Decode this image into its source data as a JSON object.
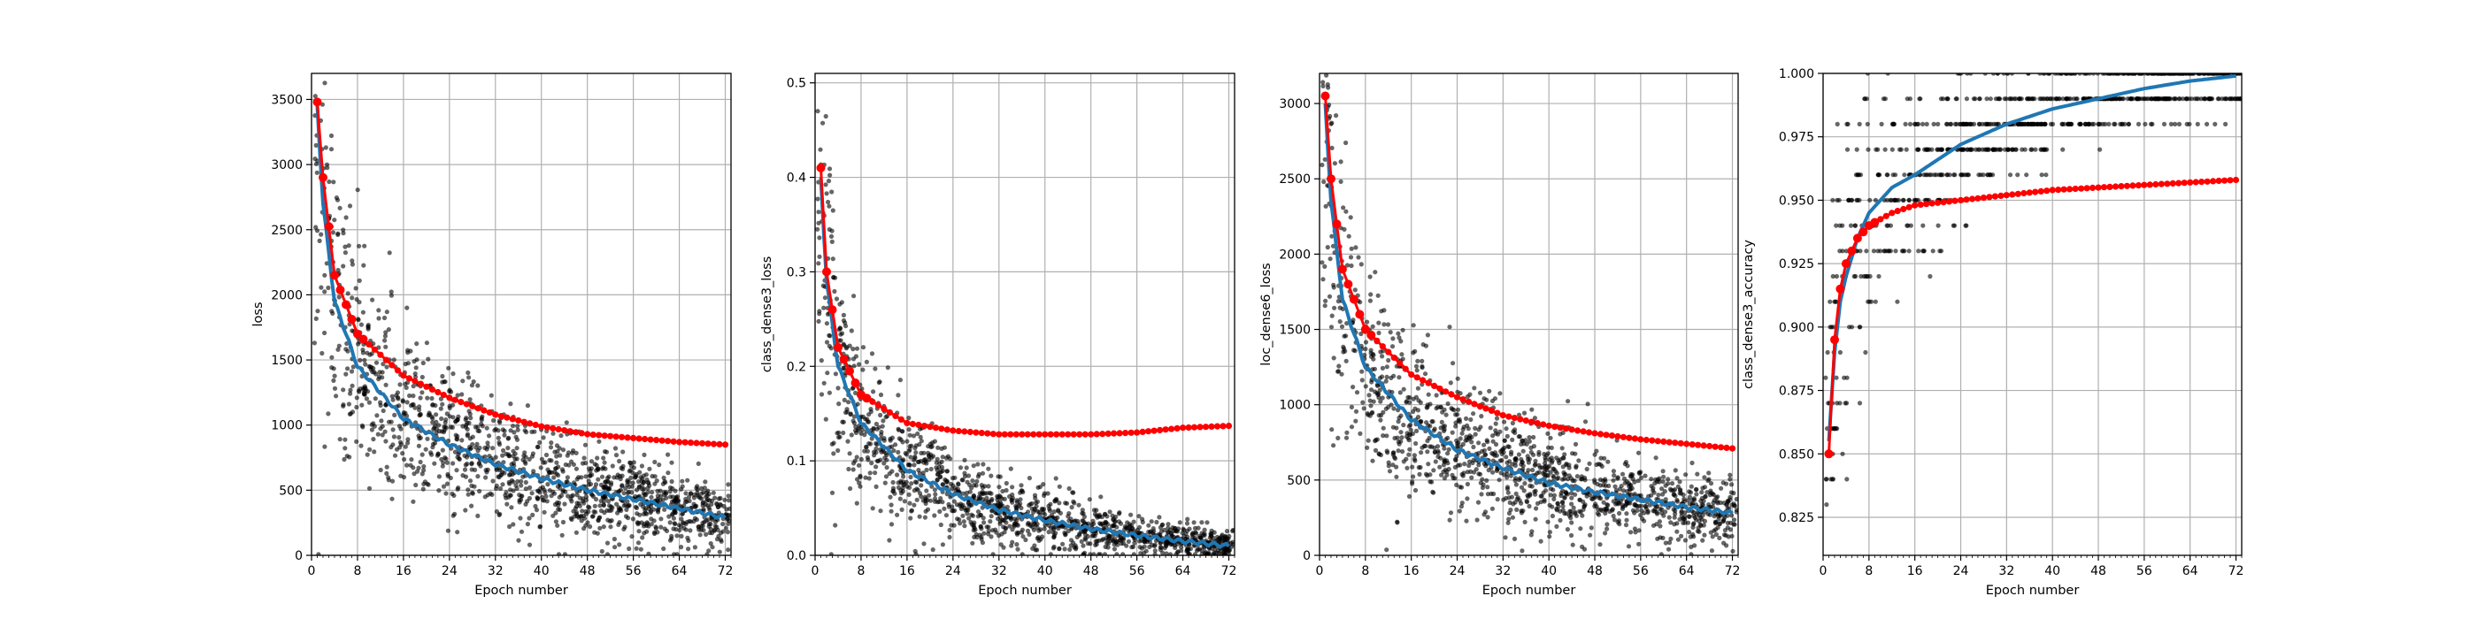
{
  "chart_data": [
    {
      "type": "scatter",
      "xlabel": "Epoch number",
      "ylabel": "loss",
      "xlim": [
        0,
        73
      ],
      "ylim": [
        0,
        3700
      ],
      "xticks": [
        0,
        8,
        16,
        24,
        32,
        40,
        48,
        56,
        64,
        72
      ],
      "yticks": [
        0,
        500,
        1000,
        1500,
        2000,
        2500,
        3000,
        3500
      ],
      "grid": true,
      "colors": {
        "points": "#000000",
        "train": "#1f77b4",
        "val": "#ff0000"
      },
      "series": [
        {
          "role": "val",
          "x": [
            1,
            2,
            4,
            8,
            16,
            24,
            32,
            40,
            48,
            56,
            64,
            72
          ],
          "values": [
            3480,
            2900,
            2150,
            1700,
            1380,
            1210,
            1080,
            990,
            930,
            900,
            870,
            850
          ]
        },
        {
          "role": "train",
          "x": [
            1,
            2,
            4,
            8,
            16,
            24,
            32,
            40,
            48,
            56,
            64,
            72
          ],
          "values": [
            3450,
            2700,
            1950,
            1450,
            1050,
            850,
            700,
            590,
            500,
            430,
            360,
            290
          ]
        }
      ]
    },
    {
      "type": "scatter",
      "xlabel": "Epoch number",
      "ylabel": "class_dense3_loss",
      "xlim": [
        0,
        73
      ],
      "ylim": [
        0,
        0.51
      ],
      "xticks": [
        0,
        8,
        16,
        24,
        32,
        40,
        48,
        56,
        64,
        72
      ],
      "yticks": [
        0.0,
        0.1,
        0.2,
        0.3,
        0.4,
        0.5
      ],
      "grid": true,
      "colors": {
        "points": "#000000",
        "train": "#1f77b4",
        "val": "#ff0000"
      },
      "series": [
        {
          "role": "val",
          "x": [
            1,
            2,
            4,
            8,
            16,
            24,
            32,
            40,
            48,
            56,
            64,
            72
          ],
          "values": [
            0.41,
            0.3,
            0.22,
            0.17,
            0.14,
            0.132,
            0.128,
            0.128,
            0.128,
            0.13,
            0.135,
            0.137
          ]
        },
        {
          "role": "train",
          "x": [
            1,
            2,
            4,
            8,
            16,
            24,
            32,
            40,
            48,
            56,
            64,
            72
          ],
          "values": [
            0.4,
            0.29,
            0.2,
            0.14,
            0.09,
            0.065,
            0.048,
            0.037,
            0.028,
            0.021,
            0.015,
            0.01
          ]
        }
      ]
    },
    {
      "type": "scatter",
      "xlabel": "Epoch number",
      "ylabel": "loc_dense6_loss",
      "xlim": [
        0,
        73
      ],
      "ylim": [
        0,
        3200
      ],
      "xticks": [
        0,
        8,
        16,
        24,
        32,
        40,
        48,
        56,
        64,
        72
      ],
      "yticks": [
        0,
        500,
        1000,
        1500,
        2000,
        2500,
        3000
      ],
      "grid": true,
      "colors": {
        "points": "#000000",
        "train": "#1f77b4",
        "val": "#ff0000"
      },
      "series": [
        {
          "role": "val",
          "x": [
            1,
            2,
            4,
            8,
            16,
            24,
            32,
            40,
            48,
            56,
            64,
            72
          ],
          "values": [
            3050,
            2500,
            1900,
            1500,
            1200,
            1050,
            930,
            860,
            810,
            770,
            740,
            710
          ]
        },
        {
          "role": "train",
          "x": [
            1,
            2,
            4,
            8,
            16,
            24,
            32,
            40,
            48,
            56,
            64,
            72
          ],
          "values": [
            3000,
            2350,
            1700,
            1250,
            900,
            700,
            580,
            480,
            420,
            370,
            320,
            280
          ]
        }
      ]
    },
    {
      "type": "scatter",
      "xlabel": "Epoch number",
      "ylabel": "class_dense3_accuracy",
      "xlim": [
        0,
        73
      ],
      "ylim": [
        0.81,
        1.0
      ],
      "xticks": [
        0,
        8,
        16,
        24,
        32,
        40,
        48,
        56,
        64,
        72
      ],
      "yticks": [
        0.825,
        0.85,
        0.875,
        0.9,
        0.925,
        0.95,
        0.975,
        1.0
      ],
      "ytick_labels": [
        "0.825",
        "0.850",
        "0.875",
        "0.900",
        "0.925",
        "0.950",
        "0.975",
        "1.000"
      ],
      "grid": true,
      "colors": {
        "points": "#000000",
        "train": "#1f77b4",
        "val": "#ff0000"
      },
      "series": [
        {
          "role": "val",
          "x": [
            1,
            2,
            3,
            4,
            6,
            8,
            12,
            16,
            24,
            32,
            40,
            48,
            56,
            64,
            72
          ],
          "values": [
            0.85,
            0.895,
            0.915,
            0.925,
            0.935,
            0.94,
            0.945,
            0.948,
            0.95,
            0.952,
            0.954,
            0.955,
            0.956,
            0.957,
            0.958
          ]
        },
        {
          "role": "train",
          "x": [
            1,
            2,
            3,
            4,
            6,
            8,
            12,
            16,
            24,
            32,
            40,
            48,
            56,
            64,
            72
          ],
          "values": [
            0.855,
            0.89,
            0.91,
            0.92,
            0.935,
            0.945,
            0.955,
            0.96,
            0.972,
            0.98,
            0.986,
            0.99,
            0.994,
            0.997,
            0.999
          ]
        }
      ]
    }
  ]
}
